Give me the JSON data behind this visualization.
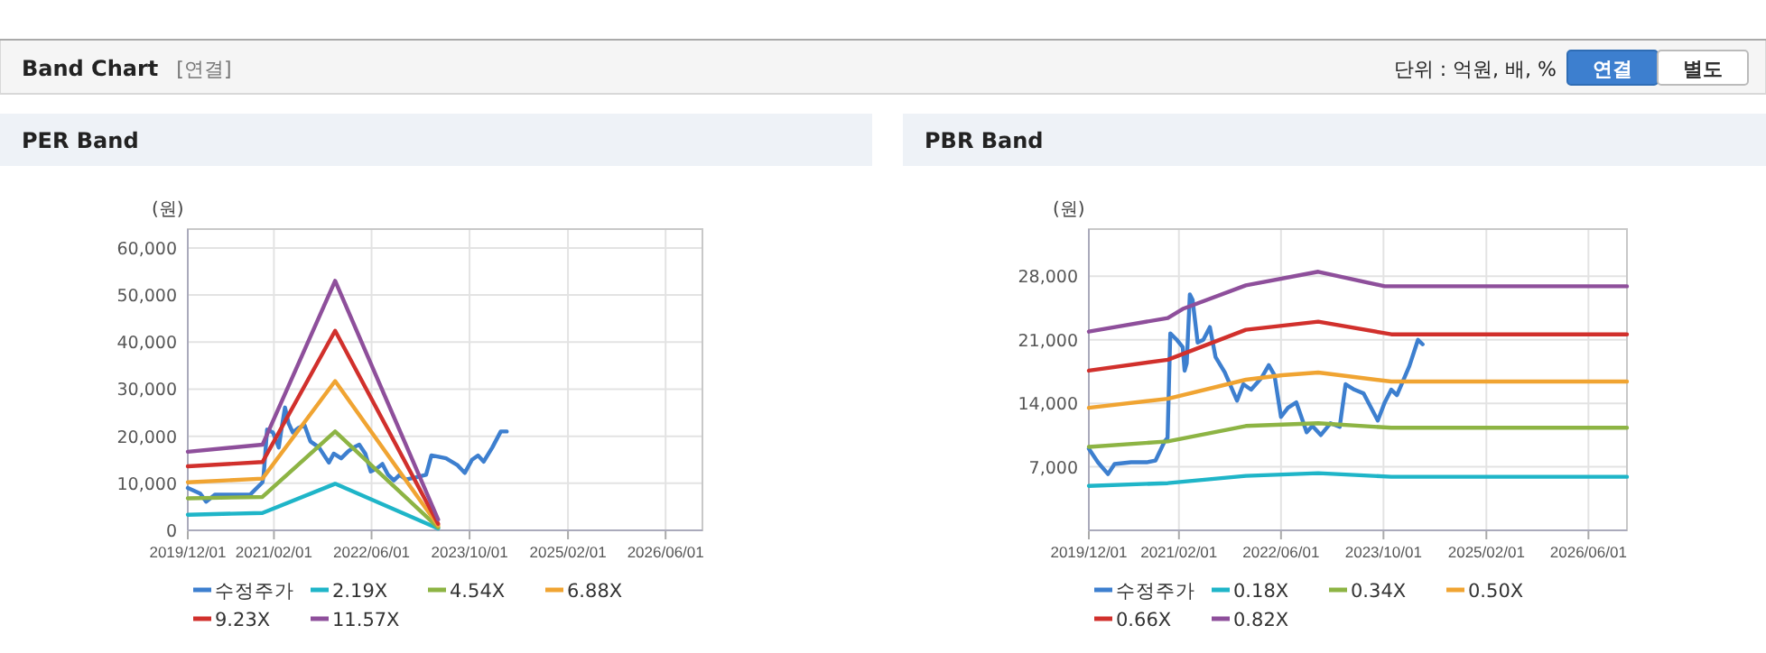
{
  "chart_data": [
    {
      "type": "other",
      "title": "Band Chart",
      "annotations": [
        "[연결]",
        "단위 : 억원, 배, %",
        "연결",
        "별도"
      ]
    },
    {
      "type": "line",
      "title": "PER Band",
      "ylabel": "(원)",
      "grid": true,
      "legend": "bottom",
      "xlim": [
        "2019-12-01",
        "2026-12-01"
      ],
      "ylim": [
        0,
        64000
      ],
      "xticks": [
        {
          "value": "2019-12-01",
          "label": "2019/12/01"
        },
        {
          "value": "2021-02-01",
          "label": "2021/02/01"
        },
        {
          "value": "2022-06-01",
          "label": "2022/06/01"
        },
        {
          "value": "2023-10-01",
          "label": "2023/10/01"
        },
        {
          "value": "2025-02-01",
          "label": "2025/02/01"
        },
        {
          "value": "2026-06-01",
          "label": "2026/06/01"
        }
      ],
      "yticks": [
        0,
        {
          "value": 10000,
          "label": "10,000"
        },
        {
          "value": 20000,
          "label": "20,000"
        },
        {
          "value": 30000,
          "label": "30,000"
        },
        {
          "value": 40000,
          "label": "40,000"
        },
        {
          "value": 50000,
          "label": "50,000"
        },
        {
          "value": 60000,
          "label": "60,000"
        }
      ],
      "series": [
        {
          "name": "수정주가",
          "color": "#3d7fcf",
          "x": [
            "2019-12-01",
            "2020-02-01",
            "2020-03-01",
            "2020-04-15",
            "2020-10-06",
            "2020-12-06",
            "2020-12-12",
            "2020-12-29",
            "2021-01-27",
            "2021-02-25",
            "2021-03-10",
            "2021-03-28",
            "2021-04-15",
            "2021-05-06",
            "2021-06-04",
            "2021-07-03",
            "2021-08-01",
            "2021-09-13",
            "2021-11-01",
            "2021-11-25",
            "2022-01-01",
            "2022-02-03",
            "2022-03-03",
            "2022-04-01",
            "2022-05-01",
            "2022-05-28",
            "2022-06-25",
            "2022-07-25",
            "2022-08-22",
            "2022-09-20",
            "2022-10-19",
            "2022-11-18",
            "2023-01-01",
            "2023-02-27",
            "2023-03-25",
            "2023-04-24",
            "2023-06-06",
            "2023-08-03",
            "2023-09-07",
            "2023-10-13",
            "2023-11-12",
            "2023-12-10",
            "2024-01-22",
            "2024-03-04",
            "2024-04-03"
          ],
          "values": [
            9000,
            7800,
            6100,
            7600,
            7600,
            10200,
            11800,
            21400,
            20800,
            17600,
            21400,
            26100,
            22700,
            20800,
            21800,
            22300,
            18900,
            17600,
            14400,
            16300,
            15300,
            16700,
            17600,
            18200,
            16300,
            12500,
            13100,
            14100,
            11800,
            10600,
            11800,
            10800,
            11200,
            11800,
            15900,
            15700,
            15300,
            13800,
            12200,
            15000,
            15900,
            14600,
            17600,
            21000,
            21000
          ]
        },
        {
          "name": "2.19X",
          "color": "#1fb5c8",
          "x": [
            "2019-12-01",
            "2020-12-06",
            "2021-12-02",
            "2023-04-28"
          ],
          "values": [
            3300,
            3700,
            9900,
            400
          ]
        },
        {
          "name": "4.54X",
          "color": "#8db444",
          "x": [
            "2019-12-01",
            "2020-12-06",
            "2021-12-02",
            "2023-04-28"
          ],
          "values": [
            6800,
            7100,
            21000,
            600
          ]
        },
        {
          "name": "6.88X",
          "color": "#f0a432",
          "x": [
            "2019-12-01",
            "2020-12-06",
            "2021-12-02",
            "2023-04-28"
          ],
          "values": [
            10200,
            11000,
            31700,
            1000
          ]
        },
        {
          "name": "9.23X",
          "color": "#d1302c",
          "x": [
            "2019-12-01",
            "2020-12-06",
            "2021-12-02",
            "2023-04-28"
          ],
          "values": [
            13600,
            14500,
            42400,
            1400
          ]
        },
        {
          "name": "11.57X",
          "color": "#8e4f9b",
          "x": [
            "2019-12-01",
            "2020-12-06",
            "2021-12-02",
            "2023-04-28"
          ],
          "values": [
            16700,
            18200,
            53000,
            2300
          ]
        }
      ]
    },
    {
      "type": "line",
      "title": "PBR Band",
      "ylabel": "(원)",
      "grid": true,
      "legend": "bottom",
      "xlim": [
        "2019-12-01",
        "2026-12-01"
      ],
      "ylim": [
        0,
        33200
      ],
      "xticks": [
        {
          "value": "2019-12-01",
          "label": "2019/12/01"
        },
        {
          "value": "2021-02-01",
          "label": "2021/02/01"
        },
        {
          "value": "2022-06-01",
          "label": "2022/06/01"
        },
        {
          "value": "2023-10-01",
          "label": "2023/10/01"
        },
        {
          "value": "2025-02-01",
          "label": "2025/02/01"
        },
        {
          "value": "2026-06-01",
          "label": "2026/06/01"
        }
      ],
      "yticks": [
        {
          "value": 7000,
          "label": "7,000"
        },
        {
          "value": 14000,
          "label": "14,000"
        },
        {
          "value": 21000,
          "label": "21,000"
        },
        {
          "value": 28000,
          "label": "28,000"
        }
      ],
      "series": [
        {
          "name": "수정주가",
          "color": "#3d7fcf",
          "x": [
            "2019-12-01",
            "2020-01-13",
            "2020-03-01",
            "2020-04-01",
            "2020-06-19",
            "2020-09-01",
            "2020-10-13",
            "2020-11-25",
            "2020-12-09",
            "2020-12-22",
            "2021-01-22",
            "2021-02-19",
            "2021-02-28",
            "2021-03-10",
            "2021-03-25",
            "2021-04-07",
            "2021-05-01",
            "2021-05-28",
            "2021-06-28",
            "2021-07-25",
            "2021-09-07",
            "2021-11-04",
            "2021-12-04",
            "2022-01-10",
            "2022-02-28",
            "2022-04-04",
            "2022-05-01",
            "2022-06-01",
            "2022-07-04",
            "2022-08-13",
            "2022-10-01",
            "2022-10-28",
            "2022-12-07",
            "2023-01-22",
            "2023-03-07",
            "2023-04-04",
            "2023-05-16",
            "2023-06-28",
            "2023-09-04",
            "2023-10-07",
            "2023-11-07",
            "2023-12-04",
            "2024-02-01",
            "2024-03-13",
            "2024-04-04"
          ],
          "values": [
            9000,
            7500,
            6200,
            7300,
            7500,
            7500,
            7700,
            9800,
            10200,
            21700,
            21000,
            20200,
            17600,
            18400,
            26000,
            25400,
            20700,
            21000,
            22400,
            19100,
            17400,
            14300,
            16100,
            15500,
            16800,
            18200,
            17100,
            12500,
            13500,
            14100,
            10800,
            11500,
            10500,
            11800,
            11400,
            16100,
            15500,
            15100,
            12100,
            14100,
            15500,
            14900,
            18100,
            21000,
            20500
          ]
        },
        {
          "name": "0.18X",
          "color": "#1fb5c8",
          "x": [
            "2019-12-01",
            "2020-12-10",
            "2021-12-16",
            "2022-11-25",
            "2023-11-07",
            "2026-12-01"
          ],
          "values": [
            4900,
            5200,
            6000,
            6300,
            5900,
            5900
          ]
        },
        {
          "name": "0.34X",
          "color": "#8db444",
          "x": [
            "2019-12-01",
            "2020-12-10",
            "2021-12-16",
            "2022-11-25",
            "2023-11-07",
            "2026-12-01"
          ],
          "values": [
            9200,
            9800,
            11500,
            11800,
            11300,
            11300
          ]
        },
        {
          "name": "0.50X",
          "color": "#f0a432",
          "x": [
            "2019-12-01",
            "2020-12-10",
            "2021-12-16",
            "2022-06-07",
            "2022-11-25",
            "2023-11-07",
            "2026-12-01"
          ],
          "values": [
            13500,
            14500,
            16600,
            17100,
            17400,
            16400,
            16400
          ]
        },
        {
          "name": "0.66X",
          "color": "#d1302c",
          "x": [
            "2019-12-01",
            "2020-12-10",
            "2021-12-16",
            "2022-11-25",
            "2023-11-07",
            "2026-12-01"
          ],
          "values": [
            17600,
            18800,
            22100,
            23000,
            21600,
            21600
          ]
        },
        {
          "name": "0.82X",
          "color": "#8e4f9b",
          "x": [
            "2019-12-01",
            "2020-12-10",
            "2021-02-19",
            "2021-12-16",
            "2022-11-25",
            "2023-10-07",
            "2026-12-01"
          ],
          "values": [
            21900,
            23400,
            24400,
            27000,
            28500,
            26900,
            26900
          ]
        }
      ]
    }
  ]
}
